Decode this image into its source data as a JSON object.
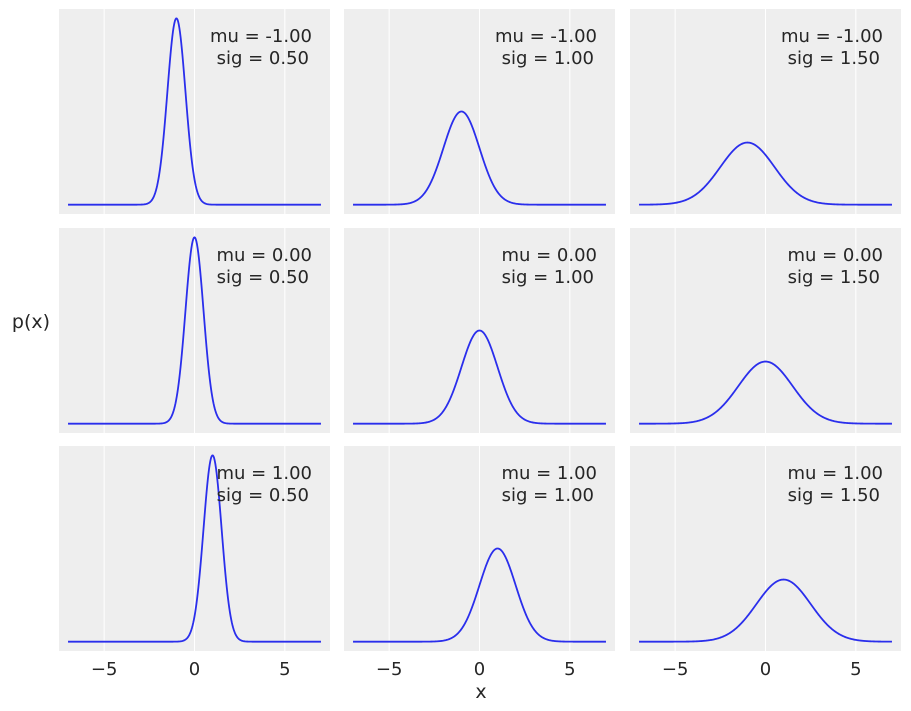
{
  "chart_data": {
    "type": "line",
    "layout": {
      "rows": 3,
      "cols": 3
    },
    "xlabel": "x",
    "ylabel": "p(x)",
    "xlim": [
      -7.5,
      7.5
    ],
    "x_range": [
      -7,
      7
    ],
    "xticks": [
      -5,
      0,
      5
    ],
    "xtick_labels": [
      "−5",
      "0",
      "5"
    ],
    "yticks_visible": false,
    "grid": true,
    "line_color": "#2a2eec",
    "panel_color": "#eeeeee",
    "panels": [
      {
        "mu": -1.0,
        "sig": 0.5,
        "label_mu": "mu = -1.00",
        "label_sig": "sig = 0.50"
      },
      {
        "mu": -1.0,
        "sig": 1.0,
        "label_mu": "mu = -1.00",
        "label_sig": "sig = 1.00"
      },
      {
        "mu": -1.0,
        "sig": 1.5,
        "label_mu": "mu = -1.00",
        "label_sig": "sig = 1.50"
      },
      {
        "mu": 0.0,
        "sig": 0.5,
        "label_mu": "mu = 0.00",
        "label_sig": "sig = 0.50"
      },
      {
        "mu": 0.0,
        "sig": 1.0,
        "label_mu": "mu = 0.00",
        "label_sig": "sig = 1.00"
      },
      {
        "mu": 0.0,
        "sig": 1.5,
        "label_mu": "mu = 0.00",
        "label_sig": "sig = 1.50"
      },
      {
        "mu": 1.0,
        "sig": 0.5,
        "label_mu": "mu = 1.00",
        "label_sig": "sig = 0.50"
      },
      {
        "mu": 1.0,
        "sig": 1.0,
        "label_mu": "mu = 1.00",
        "label_sig": "sig = 1.00"
      },
      {
        "mu": 1.0,
        "sig": 1.5,
        "label_mu": "mu = 1.00",
        "label_sig": "sig = 1.50"
      }
    ]
  }
}
